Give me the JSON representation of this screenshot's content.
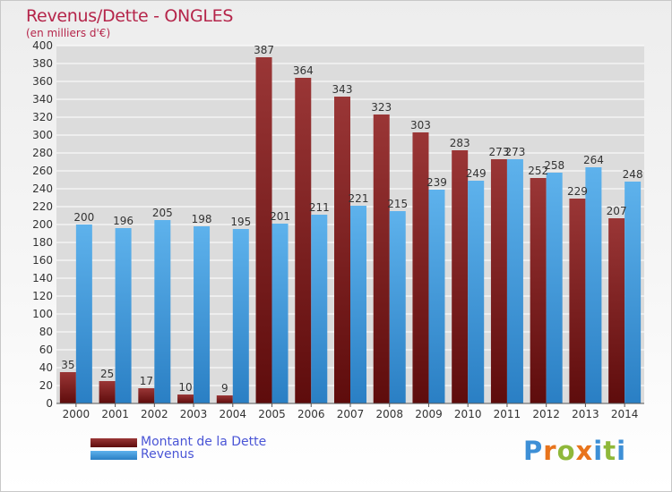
{
  "header": {
    "title": "Revenus/Dette - ONGLES",
    "subtitle": "(en milliers d'€)"
  },
  "legend": {
    "debt_label": "Montant de la Dette",
    "revenue_label": "Revenus"
  },
  "logo": {
    "text": "Proxiti",
    "letters": [
      "P",
      "r",
      "o",
      "x",
      "i",
      "t",
      "i"
    ],
    "colors": [
      "#3d8fd6",
      "#e8741c",
      "#8fb83a",
      "#e8741c",
      "#3d8fd6",
      "#8fb83a",
      "#3d8fd6"
    ]
  },
  "colors": {
    "debt": "#7a1d1d",
    "debt_light": "#a04040",
    "revenue": "#3a92d8",
    "revenue_light": "#6ab8ee",
    "grid": "#ffffff",
    "label": "#333333"
  },
  "chart_data": {
    "type": "bar",
    "categories": [
      "2000",
      "2001",
      "2002",
      "2003",
      "2004",
      "2005",
      "2006",
      "2007",
      "2008",
      "2009",
      "2010",
      "2011",
      "2012",
      "2013",
      "2014"
    ],
    "series": [
      {
        "name": "Montant de la Dette",
        "values": [
          35,
          25,
          17,
          10,
          9,
          387,
          364,
          343,
          323,
          303,
          283,
          273,
          252,
          229,
          207
        ]
      },
      {
        "name": "Revenus",
        "values": [
          200,
          196,
          205,
          198,
          195,
          201,
          211,
          221,
          215,
          239,
          249,
          273,
          258,
          264,
          248
        ]
      }
    ],
    "ylim": [
      0,
      400
    ],
    "yticks": [
      0,
      20,
      40,
      60,
      80,
      100,
      120,
      140,
      160,
      180,
      200,
      220,
      240,
      260,
      280,
      300,
      320,
      340,
      360,
      380,
      400
    ],
    "grid": true,
    "legend_position": "bottom-left"
  }
}
